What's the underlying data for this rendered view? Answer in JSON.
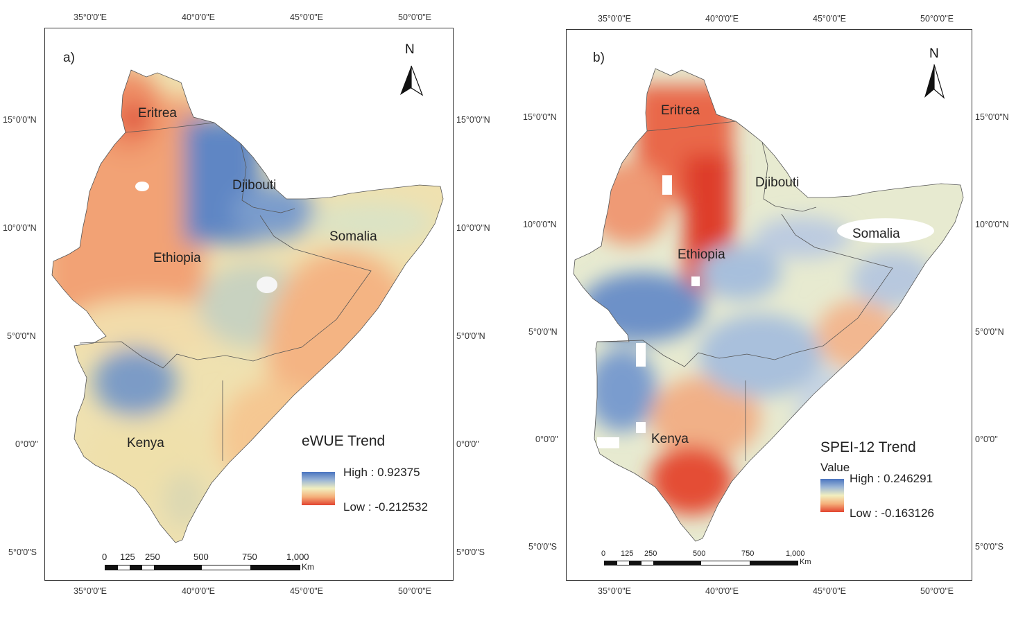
{
  "panel_a": {
    "label": "a)",
    "legend_title": "eWUE Trend",
    "legend_high": "High : 0.92375",
    "legend_low": "Low : -0.212532",
    "north": "N",
    "countries": {
      "eritrea": "Eritrea",
      "djibouti": "Djibouti",
      "somalia": "Somalia",
      "ethiopia": "Ethiopia",
      "kenya": "Kenya"
    },
    "top_ticks": [
      "35°0'0\"E",
      "40°0'0\"E",
      "45°0'0\"E",
      "50°0'0\"E"
    ],
    "bottom_ticks": [
      "35°0'0\"E",
      "40°0'0\"E",
      "45°0'0\"E",
      "50°0'0\"E"
    ],
    "left_ticks": [
      "15°0'0\"N",
      "10°0'0\"N",
      "5°0'0\"N",
      "0°0'0\"",
      "5°0'0\"S"
    ],
    "right_ticks": [
      "15°0'0\"N",
      "10°0'0\"N",
      "5°0'0\"N",
      "0°0'0\"",
      "5°0'0\"S"
    ],
    "scale_labels": [
      "0",
      "125",
      "250",
      "500",
      "750",
      "1,000"
    ],
    "scale_unit": "Km"
  },
  "panel_b": {
    "label": "b)",
    "legend_title": "SPEI-12 Trend",
    "legend_subtitle": "Value",
    "legend_high": "High : 0.246291",
    "legend_low": "Low : -0.163126",
    "north": "N",
    "countries": {
      "eritrea": "Eritrea",
      "djibouti": "Djibouti",
      "somalia": "Somalia",
      "ethiopia": "Ethiopia",
      "kenya": "Kenya"
    },
    "top_ticks": [
      "35°0'0\"E",
      "40°0'0\"E",
      "45°0'0\"E",
      "50°0'0\"E"
    ],
    "bottom_ticks": [
      "35°0'0\"E",
      "40°0'0\"E",
      "45°0'0\"E",
      "50°0'0\"E"
    ],
    "left_ticks": [
      "15°0'0\"N",
      "10°0'0\"N",
      "5°0'0\"N",
      "0°0'0\"",
      "5°0'0\"S"
    ],
    "right_ticks": [
      "15°0'0\"N",
      "10°0'0\"N",
      "5°0'0\"N",
      "0°0'0\"",
      "5°0'0\"S"
    ],
    "scale_labels": [
      "0",
      "125",
      "250",
      "500",
      "750",
      "1,000"
    ],
    "scale_unit": "Km"
  },
  "colors": {
    "high": "#4a74c0",
    "mid": "#f2efbf",
    "low": "#e2442f"
  }
}
